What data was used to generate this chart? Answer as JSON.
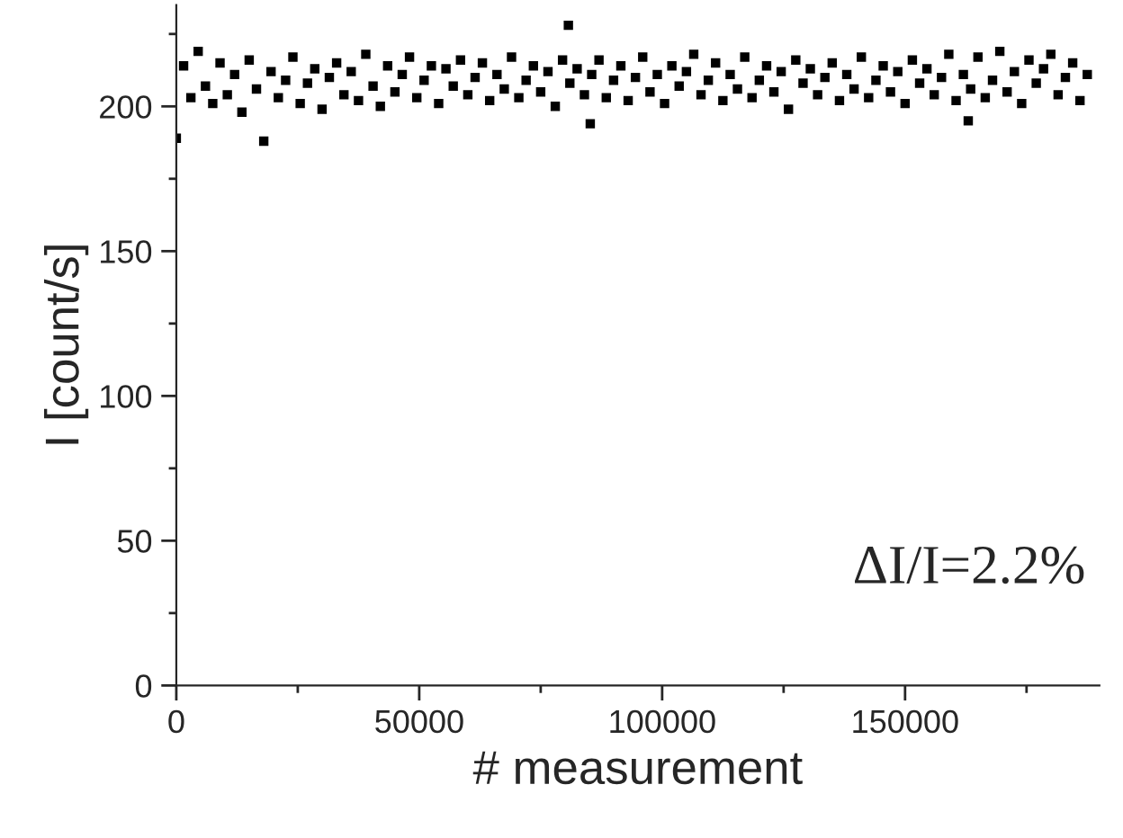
{
  "chart_data": {
    "type": "scatter",
    "xlabel": "# measurement",
    "ylabel": "I [count/s]",
    "annotations": [
      "ΔI/I=2.2%"
    ],
    "xlim": [
      0,
      190000
    ],
    "xticks": [
      0,
      50000,
      100000,
      150000
    ],
    "ylim": [
      0,
      235
    ],
    "yticks": [
      0,
      50,
      100,
      150,
      200
    ],
    "marker": "square",
    "grid": false,
    "legend": false,
    "series": [
      {
        "color": "#000000",
        "x": [
          0,
          1500,
          3000,
          4500,
          6000,
          7500,
          9000,
          10500,
          12000,
          13500,
          15000,
          16500,
          18000,
          19500,
          21000,
          22500,
          24000,
          25500,
          27000,
          28500,
          30000,
          31500,
          33000,
          34500,
          36000,
          37500,
          39000,
          40500,
          42000,
          43500,
          45000,
          46500,
          48000,
          49500,
          51000,
          52500,
          54000,
          55500,
          57000,
          58500,
          60000,
          61500,
          63000,
          64500,
          66000,
          67500,
          69000,
          70500,
          72000,
          73500,
          75000,
          76500,
          78000,
          79500,
          80700,
          81000,
          82500,
          84000,
          85200,
          85500,
          87000,
          88500,
          90000,
          91500,
          93000,
          94500,
          96000,
          97500,
          99000,
          100500,
          102000,
          103500,
          105000,
          106500,
          108000,
          109500,
          111000,
          112500,
          114000,
          115500,
          117000,
          118500,
          120000,
          121500,
          123000,
          124500,
          126000,
          127500,
          129000,
          130500,
          132000,
          133500,
          135000,
          136500,
          138000,
          139500,
          141000,
          142500,
          144000,
          145500,
          147000,
          148500,
          150000,
          151500,
          153000,
          154500,
          156000,
          157500,
          159000,
          160500,
          162000,
          163000,
          163500,
          165000,
          166500,
          168000,
          169500,
          171000,
          172500,
          174000,
          175500,
          177000,
          178500,
          180000,
          181500,
          183000,
          184500,
          186000,
          187500
        ],
        "values": [
          189,
          214,
          203,
          219,
          207,
          201,
          215,
          204,
          211,
          198,
          216,
          206,
          188,
          212,
          203,
          209,
          217,
          201,
          208,
          213,
          199,
          210,
          215,
          204,
          212,
          202,
          218,
          207,
          200,
          214,
          205,
          211,
          217,
          203,
          209,
          214,
          201,
          213,
          207,
          216,
          204,
          210,
          215,
          202,
          211,
          206,
          217,
          203,
          209,
          214,
          205,
          212,
          200,
          216,
          228,
          208,
          213,
          204,
          194,
          211,
          216,
          203,
          209,
          214,
          202,
          210,
          217,
          205,
          211,
          201,
          214,
          207,
          212,
          218,
          204,
          209,
          215,
          202,
          211,
          206,
          217,
          203,
          209,
          214,
          205,
          212,
          199,
          216,
          208,
          213,
          204,
          210,
          215,
          202,
          211,
          206,
          217,
          203,
          209,
          214,
          205,
          212,
          201,
          216,
          208,
          213,
          204,
          210,
          218,
          202,
          211,
          195,
          206,
          217,
          203,
          209,
          219,
          205,
          212,
          201,
          216,
          208,
          213,
          218,
          204,
          210,
          215,
          202,
          211
        ]
      }
    ]
  }
}
